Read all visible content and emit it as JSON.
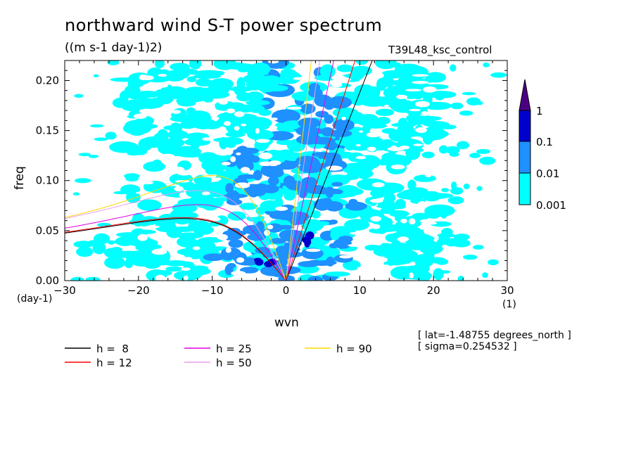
{
  "header": {
    "title": "northward wind S-T power spectrum",
    "subtitle": "((m s-1 day-1)2)",
    "run": "T39L48_ksc_control"
  },
  "axes": {
    "ylabel": "freq",
    "yunit": "(day-1)",
    "xlabel": "wvn",
    "xunit": "(1)"
  },
  "meta": {
    "lat": "[ lat=-1.48755 degrees_north ]",
    "sigma": "[ sigma=0.254532 ]"
  },
  "colors": {
    "level1": "#00ffff",
    "level2": "#1e90ff",
    "level3": "#0000cd",
    "level4": "#4b0082",
    "h8": "#000000",
    "h12": "#ff0000",
    "h25": "#e600e6",
    "h50": "#e89ee8",
    "h90": "#ffd700"
  },
  "colorbar": {
    "labels": [
      "1",
      "0.1",
      "0.01",
      "0.001"
    ]
  },
  "legend": [
    {
      "label": "h =  8",
      "color": "#000000"
    },
    {
      "label": "h = 12",
      "color": "#ff0000"
    },
    {
      "label": "h = 25",
      "color": "#e600e6"
    },
    {
      "label": "h = 50",
      "color": "#e89ee8"
    },
    {
      "label": "h = 90",
      "color": "#ffd700"
    }
  ],
  "chart_data": {
    "type": "heatmap",
    "title": "northward wind S-T power spectrum",
    "subtitle": "((m s-1 day-1)2)",
    "xlabel": "wvn",
    "ylabel": "freq",
    "xlim": [
      -30,
      30
    ],
    "ylim": [
      0,
      0.22
    ],
    "x_ticks": [
      -30,
      -20,
      -10,
      0,
      10,
      20,
      30
    ],
    "y_ticks": [
      0.0,
      0.05,
      0.1,
      0.15,
      0.2
    ],
    "y_tick_labels": [
      "0.00",
      "0.05",
      "0.10",
      "0.15",
      "0.20"
    ],
    "contour_levels": [
      0.001,
      0.01,
      0.1,
      1
    ],
    "grid": false,
    "power_blobs": [
      {
        "x": -18,
        "y": 0.03,
        "level": 1,
        "rx": 10,
        "ry": 0.02
      },
      {
        "x": -10,
        "y": 0.05,
        "level": 1,
        "rx": 10,
        "ry": 0.05
      },
      {
        "x": -8,
        "y": 0.12,
        "level": 1,
        "rx": 12,
        "ry": 0.06
      },
      {
        "x": -12,
        "y": 0.19,
        "level": 1,
        "rx": 12,
        "ry": 0.03
      },
      {
        "x": 10,
        "y": 0.08,
        "level": 1,
        "rx": 10,
        "ry": 0.07
      },
      {
        "x": 12,
        "y": 0.17,
        "level": 1,
        "rx": 9,
        "ry": 0.05
      },
      {
        "x": 18,
        "y": 0.04,
        "level": 1,
        "rx": 6,
        "ry": 0.03
      },
      {
        "x": -4,
        "y": 0.03,
        "level": 2,
        "rx": 6,
        "ry": 0.025
      },
      {
        "x": -5,
        "y": 0.1,
        "level": 2,
        "rx": 4,
        "ry": 0.03
      },
      {
        "x": 4,
        "y": 0.06,
        "level": 2,
        "rx": 6,
        "ry": 0.05
      },
      {
        "x": 5,
        "y": 0.15,
        "level": 2,
        "rx": 3,
        "ry": 0.05
      },
      {
        "x": 4,
        "y": 0.04,
        "level": 3,
        "rx": 1.5,
        "ry": 0.008
      },
      {
        "x": -3,
        "y": 0.02,
        "level": 3,
        "rx": 1.2,
        "ry": 0.006
      }
    ],
    "dispersion_curves": [
      {
        "name": "h =  8",
        "peak_freq": 0.062,
        "peak_x": -14
      },
      {
        "name": "h = 12",
        "peak_freq": 0.063,
        "peak_x": -14
      },
      {
        "name": "h = 25",
        "peak_freq": 0.076,
        "peak_x": -12
      },
      {
        "name": "h = 50",
        "peak_freq": 0.09,
        "peak_x": -12
      },
      {
        "name": "h = 90",
        "peak_freq": 0.105,
        "peak_x": -10
      }
    ]
  }
}
